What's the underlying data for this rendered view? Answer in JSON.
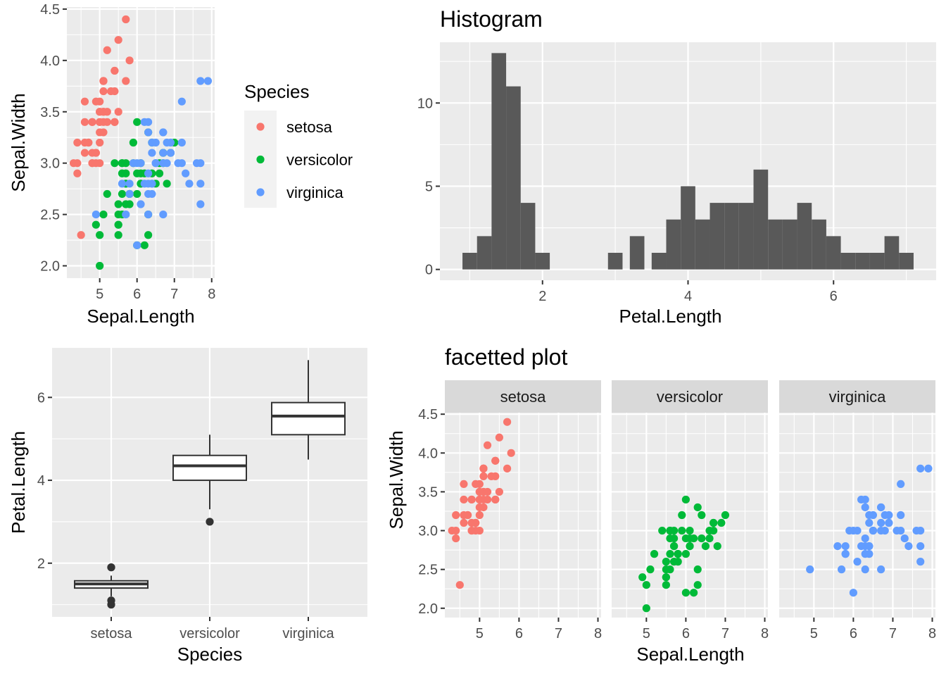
{
  "colors": {
    "setosa": "#F8766D",
    "versicolor": "#00BA38",
    "virginica": "#619CFF",
    "panel": "#EBEBEB",
    "grid": "#FFFFFF",
    "bar": "#595959",
    "strip": "#D9D9D9"
  },
  "legend": {
    "title": "Species",
    "items": [
      "setosa",
      "versicolor",
      "virginica"
    ]
  },
  "chart_data": [
    {
      "id": "scatter",
      "type": "scatter",
      "title": "",
      "xlabel": "Sepal.Length",
      "ylabel": "Sepal.Width",
      "xlim": [
        4.3,
        7.9
      ],
      "ylim": [
        2.0,
        4.4
      ],
      "xticks": [
        5,
        6,
        7,
        8
      ],
      "xtick_labels": [
        "5",
        "6",
        "7",
        "8"
      ],
      "yticks": [
        2.0,
        2.5,
        3.0,
        3.5,
        4.0,
        4.5
      ],
      "ytick_labels": [
        "2.0",
        "2.5",
        "3.0",
        "3.5",
        "4.0",
        "4.5"
      ],
      "series": [
        {
          "name": "setosa",
          "points": [
            [
              5.1,
              3.5
            ],
            [
              4.9,
              3.0
            ],
            [
              4.7,
              3.2
            ],
            [
              4.6,
              3.1
            ],
            [
              5.0,
              3.6
            ],
            [
              5.4,
              3.9
            ],
            [
              4.6,
              3.4
            ],
            [
              5.0,
              3.4
            ],
            [
              4.4,
              2.9
            ],
            [
              4.9,
              3.1
            ],
            [
              5.4,
              3.7
            ],
            [
              4.8,
              3.4
            ],
            [
              4.8,
              3.0
            ],
            [
              4.3,
              3.0
            ],
            [
              5.8,
              4.0
            ],
            [
              5.7,
              4.4
            ],
            [
              5.4,
              3.9
            ],
            [
              5.1,
              3.5
            ],
            [
              5.7,
              3.8
            ],
            [
              5.1,
              3.8
            ],
            [
              5.4,
              3.4
            ],
            [
              5.1,
              3.7
            ],
            [
              4.6,
              3.6
            ],
            [
              5.1,
              3.3
            ],
            [
              4.8,
              3.4
            ],
            [
              5.0,
              3.0
            ],
            [
              5.0,
              3.4
            ],
            [
              5.2,
              3.5
            ],
            [
              5.2,
              3.4
            ],
            [
              4.7,
              3.2
            ],
            [
              4.8,
              3.1
            ],
            [
              5.4,
              3.4
            ],
            [
              5.2,
              4.1
            ],
            [
              5.5,
              4.2
            ],
            [
              4.9,
              3.1
            ],
            [
              5.0,
              3.2
            ],
            [
              5.5,
              3.5
            ],
            [
              4.9,
              3.6
            ],
            [
              4.4,
              3.0
            ],
            [
              5.1,
              3.4
            ],
            [
              5.0,
              3.5
            ],
            [
              4.5,
              2.3
            ],
            [
              4.4,
              3.2
            ],
            [
              5.0,
              3.5
            ],
            [
              5.1,
              3.8
            ],
            [
              4.8,
              3.0
            ],
            [
              5.1,
              3.8
            ],
            [
              4.6,
              3.2
            ],
            [
              5.3,
              3.7
            ],
            [
              5.0,
              3.3
            ]
          ]
        },
        {
          "name": "versicolor",
          "points": [
            [
              7.0,
              3.2
            ],
            [
              6.4,
              3.2
            ],
            [
              6.9,
              3.1
            ],
            [
              5.5,
              2.3
            ],
            [
              6.5,
              2.8
            ],
            [
              5.7,
              2.8
            ],
            [
              6.3,
              3.3
            ],
            [
              4.9,
              2.4
            ],
            [
              6.6,
              2.9
            ],
            [
              5.2,
              2.7
            ],
            [
              5.0,
              2.0
            ],
            [
              5.9,
              3.0
            ],
            [
              6.0,
              2.2
            ],
            [
              6.1,
              2.9
            ],
            [
              5.6,
              2.9
            ],
            [
              6.7,
              3.1
            ],
            [
              5.6,
              3.0
            ],
            [
              5.8,
              2.7
            ],
            [
              6.2,
              2.2
            ],
            [
              5.6,
              2.5
            ],
            [
              5.9,
              3.2
            ],
            [
              6.1,
              2.8
            ],
            [
              6.3,
              2.5
            ],
            [
              6.1,
              2.8
            ],
            [
              6.4,
              2.9
            ],
            [
              6.6,
              3.0
            ],
            [
              6.8,
              2.8
            ],
            [
              6.7,
              3.0
            ],
            [
              6.0,
              2.9
            ],
            [
              5.7,
              2.6
            ],
            [
              5.5,
              2.4
            ],
            [
              5.5,
              2.4
            ],
            [
              5.8,
              2.7
            ],
            [
              6.0,
              2.7
            ],
            [
              5.4,
              3.0
            ],
            [
              6.0,
              3.4
            ],
            [
              6.7,
              3.1
            ],
            [
              6.3,
              2.3
            ],
            [
              5.6,
              3.0
            ],
            [
              5.5,
              2.5
            ],
            [
              5.5,
              2.6
            ],
            [
              6.1,
              3.0
            ],
            [
              5.8,
              2.6
            ],
            [
              5.0,
              2.3
            ],
            [
              5.6,
              2.7
            ],
            [
              5.7,
              3.0
            ],
            [
              5.7,
              2.9
            ],
            [
              6.2,
              2.9
            ],
            [
              5.1,
              2.5
            ],
            [
              5.7,
              2.8
            ]
          ]
        },
        {
          "name": "virginica",
          "points": [
            [
              6.3,
              3.3
            ],
            [
              5.8,
              2.7
            ],
            [
              7.1,
              3.0
            ],
            [
              6.3,
              2.9
            ],
            [
              6.5,
              3.0
            ],
            [
              7.6,
              3.0
            ],
            [
              4.9,
              2.5
            ],
            [
              7.3,
              2.9
            ],
            [
              6.7,
              2.5
            ],
            [
              7.2,
              3.6
            ],
            [
              6.5,
              3.2
            ],
            [
              6.4,
              2.7
            ],
            [
              6.8,
              3.0
            ],
            [
              5.7,
              2.5
            ],
            [
              5.8,
              2.8
            ],
            [
              6.4,
              3.2
            ],
            [
              6.5,
              3.0
            ],
            [
              7.7,
              3.8
            ],
            [
              7.7,
              2.6
            ],
            [
              6.0,
              2.2
            ],
            [
              6.9,
              3.2
            ],
            [
              5.6,
              2.8
            ],
            [
              7.7,
              2.8
            ],
            [
              6.3,
              2.7
            ],
            [
              6.7,
              3.3
            ],
            [
              7.2,
              3.2
            ],
            [
              6.2,
              2.8
            ],
            [
              6.1,
              3.0
            ],
            [
              6.4,
              2.8
            ],
            [
              7.2,
              3.0
            ],
            [
              7.4,
              2.8
            ],
            [
              7.9,
              3.8
            ],
            [
              6.4,
              2.8
            ],
            [
              6.3,
              2.8
            ],
            [
              6.1,
              2.6
            ],
            [
              7.7,
              3.0
            ],
            [
              6.3,
              3.4
            ],
            [
              6.4,
              3.1
            ],
            [
              6.0,
              3.0
            ],
            [
              6.9,
              3.1
            ],
            [
              6.7,
              3.1
            ],
            [
              6.9,
              3.1
            ],
            [
              5.8,
              2.7
            ],
            [
              6.8,
              3.2
            ],
            [
              6.7,
              3.3
            ],
            [
              6.7,
              3.0
            ],
            [
              6.3,
              2.5
            ],
            [
              6.5,
              3.0
            ],
            [
              6.2,
              3.4
            ],
            [
              5.9,
              3.0
            ]
          ]
        }
      ]
    },
    {
      "id": "histogram",
      "type": "bar",
      "title": "Histogram",
      "xlabel": "Petal.Length",
      "ylabel": "",
      "xticks": [
        2,
        4,
        6
      ],
      "xtick_labels": [
        "2",
        "4",
        "6"
      ],
      "yticks": [
        0,
        5,
        10
      ],
      "ytick_labels": [
        "0",
        "5",
        "10"
      ],
      "xlim": [
        1.0,
        6.9
      ],
      "ylim": [
        0,
        13
      ],
      "bins": [
        [
          0.9,
          1.1,
          1
        ],
        [
          1.1,
          1.3,
          2
        ],
        [
          1.3,
          1.5,
          13
        ],
        [
          1.5,
          1.7,
          11
        ],
        [
          1.7,
          1.9,
          4
        ],
        [
          1.9,
          2.1,
          1
        ],
        [
          2.9,
          3.1,
          1
        ],
        [
          3.2,
          3.4,
          2
        ],
        [
          3.5,
          3.7,
          1
        ],
        [
          3.7,
          3.9,
          3
        ],
        [
          3.9,
          4.1,
          5
        ],
        [
          4.1,
          4.3,
          3
        ],
        [
          4.3,
          4.5,
          4
        ],
        [
          4.5,
          4.7,
          4
        ],
        [
          4.7,
          4.9,
          4
        ],
        [
          4.9,
          5.1,
          6
        ],
        [
          5.1,
          5.3,
          3
        ],
        [
          5.3,
          5.5,
          3
        ],
        [
          5.5,
          5.7,
          4
        ],
        [
          5.7,
          5.9,
          3
        ],
        [
          5.9,
          6.1,
          2
        ],
        [
          6.1,
          6.3,
          1
        ],
        [
          6.3,
          6.5,
          1
        ],
        [
          6.5,
          6.7,
          1
        ],
        [
          6.7,
          6.9,
          2
        ],
        [
          6.9,
          7.1,
          1
        ]
      ]
    },
    {
      "id": "boxplot",
      "type": "box",
      "title": "",
      "xlabel": "Species",
      "ylabel": "Petal.Length",
      "categories": [
        "setosa",
        "versicolor",
        "virginica"
      ],
      "yticks": [
        2,
        4,
        6
      ],
      "ytick_labels": [
        "2",
        "4",
        "6"
      ],
      "ylim": [
        1.0,
        6.9
      ],
      "boxes": [
        {
          "name": "setosa",
          "q1": 1.4,
          "median": 1.5,
          "q3": 1.575,
          "lower": 1.2,
          "upper": 1.7,
          "outliers": [
            1.9,
            1.9,
            1.1,
            1.0
          ]
        },
        {
          "name": "versicolor",
          "q1": 4.0,
          "median": 4.35,
          "q3": 4.6,
          "lower": 3.3,
          "upper": 5.1,
          "outliers": [
            3.0
          ]
        },
        {
          "name": "virginica",
          "q1": 5.1,
          "median": 5.55,
          "q3": 5.875,
          "lower": 4.5,
          "upper": 6.9,
          "outliers": []
        }
      ]
    },
    {
      "id": "facet",
      "type": "scatter",
      "title": "facetted plot",
      "xlabel": "Sepal.Length",
      "ylabel": "Sepal.Width",
      "facets": [
        "setosa",
        "versicolor",
        "virginica"
      ],
      "xticks": [
        5,
        6,
        7,
        8
      ],
      "xtick_labels": [
        "5",
        "6",
        "7",
        "8"
      ],
      "yticks": [
        2.0,
        2.5,
        3.0,
        3.5,
        4.0,
        4.5
      ],
      "ytick_labels": [
        "2.0",
        "2.5",
        "3.0",
        "3.5",
        "4.0",
        "4.5"
      ],
      "xlim": [
        4.3,
        7.9
      ],
      "ylim": [
        2.0,
        4.4
      ],
      "note": "points for each facet are the corresponding species series of the scatter chart"
    }
  ]
}
